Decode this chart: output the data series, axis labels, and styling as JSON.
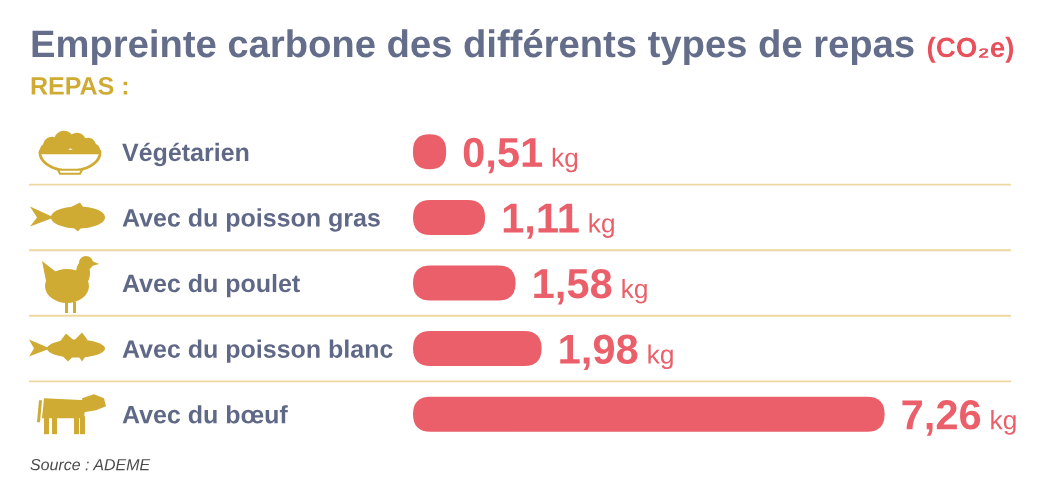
{
  "chart_data": {
    "type": "bar",
    "orientation": "horizontal",
    "title": "Empreinte carbone des différents types de repas",
    "subtitle": "(CO₂e)",
    "ylabel": "REPAS :",
    "categories": [
      "Végétarien",
      "Avec du poisson gras",
      "Avec du poulet",
      "Avec du poisson blanc",
      "Avec du bœuf"
    ],
    "values": [
      0.51,
      1.11,
      1.58,
      1.98,
      7.26
    ],
    "value_labels": [
      "0,51 kg",
      "1,11 kg",
      "1,58 kg",
      "1,98 kg",
      "7,26 kg"
    ],
    "color": "#ea5f69",
    "grid": "y",
    "tick_labels": "y",
    "annotations": [
      "Source : ADEME"
    ]
  }
}
